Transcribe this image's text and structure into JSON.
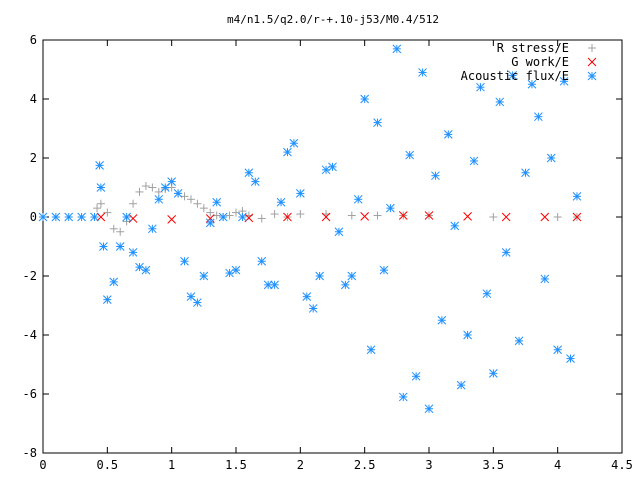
{
  "chart_data": {
    "type": "scatter",
    "title": "m4/n1.5/q2.0/r-+.10-j53/M0.4/512",
    "xlabel": "",
    "ylabel": "",
    "xlim": [
      0,
      4.5
    ],
    "ylim": [
      -8,
      6
    ],
    "xticks": [
      "0",
      "0.5",
      "1",
      "1.5",
      "2",
      "2.5",
      "3",
      "3.5",
      "4",
      "4.5"
    ],
    "yticks": [
      "-8",
      "-6",
      "-4",
      "-2",
      "0",
      "2",
      "4",
      "6"
    ],
    "grid": false,
    "legend_position": "top-right",
    "series": [
      {
        "name": "R stress/E",
        "marker": "+",
        "color": "#a0a0a0",
        "x": [
          0.42,
          0.45,
          0.5,
          0.55,
          0.6,
          0.65,
          0.7,
          0.75,
          0.8,
          0.85,
          0.9,
          0.95,
          1.0,
          1.05,
          1.1,
          1.15,
          1.2,
          1.25,
          1.3,
          1.35,
          1.4,
          1.45,
          1.5,
          1.55,
          1.6,
          1.7,
          1.8,
          1.9,
          2.0,
          2.2,
          2.4,
          2.6,
          2.8,
          3.0,
          3.5,
          4.0,
          4.15
        ],
        "y": [
          0.3,
          0.45,
          0.15,
          -0.4,
          -0.5,
          -0.15,
          0.45,
          0.85,
          1.05,
          1.0,
          0.85,
          0.95,
          1.0,
          0.8,
          0.7,
          0.6,
          0.45,
          0.3,
          0.15,
          0.05,
          0.0,
          0.05,
          0.15,
          0.2,
          0.05,
          -0.05,
          0.1,
          0.0,
          0.1,
          0.1,
          0.05,
          0.05,
          0.05,
          0.05,
          0.0,
          0.0,
          0.0
        ]
      },
      {
        "name": "G work/E",
        "marker": "x",
        "color": "#ff0000",
        "x": [
          0.45,
          0.7,
          1.0,
          1.3,
          1.6,
          1.9,
          2.2,
          2.5,
          2.8,
          3.0,
          3.3,
          3.6,
          3.9,
          4.15
        ],
        "y": [
          0.0,
          -0.05,
          -0.08,
          -0.05,
          -0.03,
          0.0,
          0.0,
          0.02,
          0.05,
          0.05,
          0.02,
          0.0,
          0.0,
          0.0
        ]
      },
      {
        "name": "Acoustic flux/E",
        "marker": "*",
        "color": "#1e90ff",
        "x": [
          0.0,
          0.1,
          0.2,
          0.3,
          0.4,
          0.44,
          0.45,
          0.47,
          0.5,
          0.55,
          0.6,
          0.65,
          0.7,
          0.75,
          0.8,
          0.85,
          0.9,
          0.95,
          1.0,
          1.05,
          1.1,
          1.15,
          1.2,
          1.25,
          1.3,
          1.35,
          1.4,
          1.45,
          1.5,
          1.55,
          1.6,
          1.65,
          1.7,
          1.75,
          1.8,
          1.85,
          1.9,
          1.95,
          2.0,
          2.05,
          2.1,
          2.15,
          2.2,
          2.25,
          2.3,
          2.35,
          2.4,
          2.45,
          2.5,
          2.55,
          2.6,
          2.65,
          2.7,
          2.75,
          2.8,
          2.85,
          2.9,
          2.95,
          3.0,
          3.05,
          3.1,
          3.15,
          3.2,
          3.25,
          3.3,
          3.35,
          3.4,
          3.45,
          3.5,
          3.55,
          3.6,
          3.65,
          3.7,
          3.75,
          3.8,
          3.85,
          3.9,
          3.95,
          4.0,
          4.05,
          4.1,
          4.15
        ],
        "y": [
          0.0,
          0.0,
          0.0,
          0.0,
          0.0,
          1.75,
          1.0,
          -1.0,
          -2.8,
          -2.2,
          -1.0,
          0.0,
          -1.2,
          -1.7,
          -1.8,
          -0.4,
          0.6,
          1.0,
          1.2,
          0.8,
          -1.5,
          -2.7,
          -2.9,
          -2.0,
          -0.2,
          0.5,
          0.0,
          -1.9,
          -1.8,
          0.0,
          1.5,
          1.2,
          -1.5,
          -2.3,
          -2.3,
          0.5,
          2.2,
          2.5,
          0.8,
          -2.7,
          -3.1,
          -2.0,
          1.6,
          1.7,
          -0.5,
          -2.3,
          -2.0,
          0.6,
          4.0,
          -4.5,
          3.2,
          -1.8,
          0.3,
          5.7,
          -6.1,
          2.1,
          -5.4,
          4.9,
          -6.5,
          1.4,
          -3.5,
          2.8,
          -0.3,
          -5.7,
          -4.0,
          1.9,
          4.4,
          -2.6,
          -5.3,
          3.9,
          -1.2,
          4.8,
          -4.2,
          1.5,
          4.5,
          3.4,
          -2.1,
          2.0,
          -4.5,
          4.6,
          -4.8,
          0.7
        ]
      }
    ]
  }
}
